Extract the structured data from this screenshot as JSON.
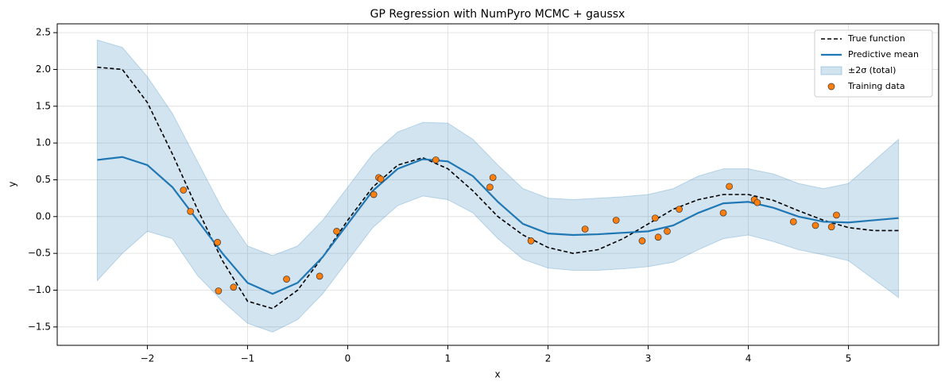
{
  "chart_data": {
    "type": "line",
    "title": "GP Regression with NumPyro MCMC + gaussx",
    "x_label": "x",
    "y_label": "y",
    "xlim": [
      -2.9,
      5.9
    ],
    "ylim": [
      -1.75,
      2.62
    ],
    "xticks": [
      {
        "value": -2,
        "label": "−2"
      },
      {
        "value": -1,
        "label": "−1"
      },
      0,
      1,
      2,
      3,
      4,
      5
    ],
    "yticks": [
      {
        "value": -1.5,
        "label": "−1.5"
      },
      {
        "value": -1,
        "label": "−1.0"
      },
      {
        "value": -0.5,
        "label": "−0.5"
      },
      {
        "value": 0,
        "label": "0.0"
      },
      0.5,
      {
        "value": 1,
        "label": "1.0"
      },
      1.5,
      {
        "value": 2,
        "label": "2.0"
      },
      2.5
    ],
    "grid": true,
    "legend": "upper right",
    "x": [
      -2.5,
      -2.25,
      -2.0,
      -1.75,
      -1.5,
      -1.25,
      -1.0,
      -0.75,
      -0.5,
      -0.25,
      0,
      0.25,
      0.5,
      0.75,
      1.0,
      1.25,
      1.5,
      1.75,
      2.0,
      2.25,
      2.5,
      2.75,
      3.0,
      3.25,
      3.5,
      3.75,
      4.0,
      4.25,
      4.5,
      4.75,
      5.0,
      5.25,
      5.5
    ],
    "series": [
      {
        "name": "True function",
        "color": "#000000",
        "style": "dashed",
        "values": [
          2.03,
          2.0,
          1.55,
          0.85,
          0.1,
          -0.6,
          -1.15,
          -1.25,
          -1.0,
          -0.55,
          -0.05,
          0.4,
          0.7,
          0.8,
          0.65,
          0.35,
          0.0,
          -0.25,
          -0.42,
          -0.5,
          -0.45,
          -0.3,
          -0.1,
          0.1,
          0.23,
          0.3,
          0.3,
          0.22,
          0.08,
          -0.05,
          -0.15,
          -0.19,
          -0.19
        ]
      },
      {
        "name": "Predictive mean",
        "color": "#1f77b4",
        "style": "solid",
        "values": [
          0.77,
          0.81,
          0.7,
          0.4,
          -0.05,
          -0.5,
          -0.9,
          -1.05,
          -0.9,
          -0.55,
          -0.1,
          0.35,
          0.65,
          0.78,
          0.75,
          0.55,
          0.2,
          -0.1,
          -0.23,
          -0.25,
          -0.24,
          -0.22,
          -0.2,
          -0.12,
          0.05,
          0.18,
          0.2,
          0.12,
          0.0,
          -0.07,
          -0.08,
          -0.05,
          -0.02
        ]
      }
    ],
    "bands": [
      {
        "name": "±2σ (total)",
        "color": "#1f77b4",
        "upper": [
          2.4,
          2.3,
          1.9,
          1.4,
          0.75,
          0.1,
          -0.4,
          -0.53,
          -0.4,
          -0.05,
          0.4,
          0.85,
          1.15,
          1.28,
          1.27,
          1.05,
          0.7,
          0.38,
          0.25,
          0.23,
          0.25,
          0.27,
          0.3,
          0.38,
          0.55,
          0.65,
          0.65,
          0.58,
          0.45,
          0.38,
          0.45,
          0.75,
          1.05
        ],
        "lower": [
          -0.87,
          -0.5,
          -0.2,
          -0.3,
          -0.8,
          -1.15,
          -1.45,
          -1.57,
          -1.4,
          -1.05,
          -0.6,
          -0.15,
          0.15,
          0.28,
          0.23,
          0.05,
          -0.3,
          -0.58,
          -0.7,
          -0.73,
          -0.73,
          -0.71,
          -0.68,
          -0.62,
          -0.45,
          -0.3,
          -0.25,
          -0.34,
          -0.45,
          -0.52,
          -0.6,
          -0.85,
          -1.1
        ]
      }
    ],
    "scatter": {
      "name": "Training data",
      "color": "#ff7f0e",
      "x": [
        -1.64,
        -1.57,
        -1.3,
        -1.29,
        -1.14,
        -0.61,
        -0.28,
        -0.11,
        0.26,
        0.31,
        0.33,
        0.88,
        1.42,
        1.45,
        1.83,
        2.37,
        2.68,
        2.94,
        3.07,
        3.1,
        3.19,
        3.31,
        3.75,
        3.81,
        4.06,
        4.09,
        4.45,
        4.67,
        4.83,
        4.88
      ],
      "y": [
        0.36,
        0.07,
        -0.35,
        -1.01,
        -0.96,
        -0.85,
        -0.81,
        -0.2,
        0.3,
        0.53,
        0.51,
        0.77,
        0.4,
        0.53,
        -0.33,
        -0.17,
        -0.05,
        -0.33,
        -0.02,
        -0.28,
        -0.2,
        0.1,
        0.05,
        0.41,
        0.23,
        0.19,
        -0.07,
        -0.12,
        -0.14,
        0.02
      ]
    }
  }
}
